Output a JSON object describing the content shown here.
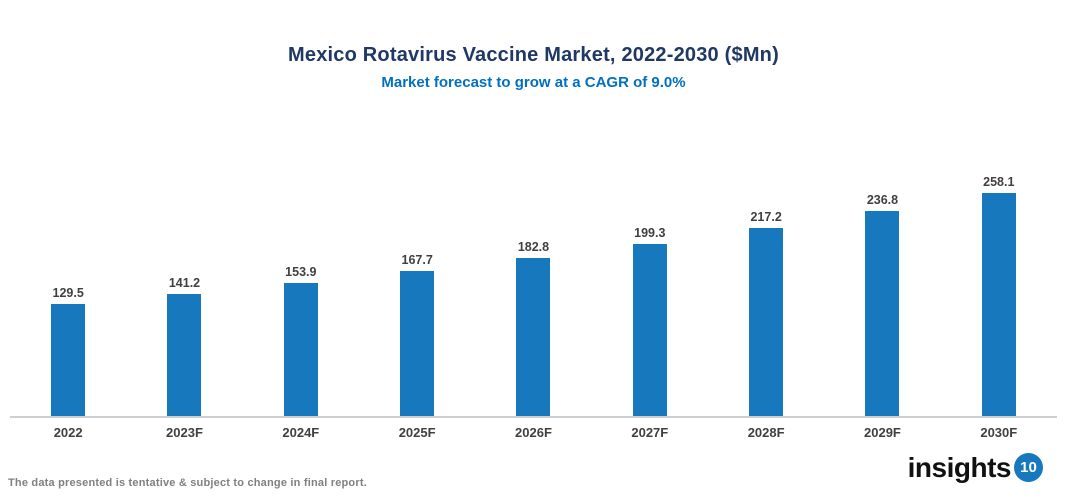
{
  "header": {
    "title": "Mexico Rotavirus Vaccine Market, 2022-2030 ($Mn)",
    "subtitle": "Market forecast to grow at a CAGR of 9.0%"
  },
  "chart_data": {
    "type": "bar",
    "categories": [
      "2022",
      "2023F",
      "2024F",
      "2025F",
      "2026F",
      "2027F",
      "2028F",
      "2029F",
      "2030F"
    ],
    "values": [
      129.5,
      141.2,
      153.9,
      167.7,
      182.8,
      199.3,
      217.2,
      236.8,
      258.1
    ],
    "title": "Mexico Rotavirus Vaccine Market, 2022-2030 ($Mn)",
    "subtitle": "Market forecast to grow at a CAGR of 9.0%",
    "xlabel": "",
    "ylabel": "",
    "ylim": [
      0,
      270
    ],
    "grid": false,
    "legend": false,
    "data_labels": true,
    "bar_color": "#1878BE"
  },
  "footer": {
    "disclaimer": "The data presented is tentative & subject to change in final report.",
    "logo_text": "insights",
    "logo_badge": "10"
  },
  "colors": {
    "title": "#1F3864",
    "subtitle": "#0070C0",
    "bar": "#1878BE",
    "value_label": "#404040",
    "category_label": "#404040",
    "axis_line": "#D0CECE",
    "footer_text": "#808080",
    "logo_text": "#111111",
    "logo_badge_bg": "#1878BE",
    "logo_badge_text": "#FFFFFF"
  }
}
